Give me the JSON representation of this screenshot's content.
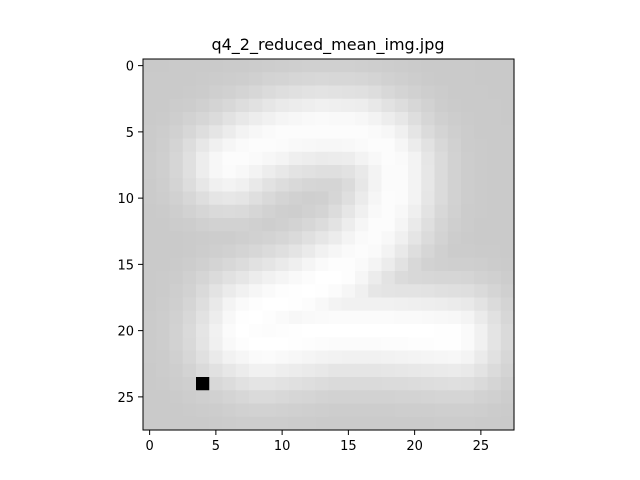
{
  "chart_data": {
    "type": "heatmap",
    "title": "q4_2_reduced_mean_img.jpg",
    "xlabel": "",
    "ylabel": "",
    "colormap": "gray",
    "grid": false,
    "xlim": [
      -0.5,
      27.5
    ],
    "ylim": [
      27.5,
      -0.5
    ],
    "xticks": [
      0,
      5,
      10,
      15,
      20,
      25
    ],
    "yticks": [
      0,
      5,
      10,
      15,
      20,
      25
    ],
    "image_size": [
      28,
      28
    ],
    "background_value": 0.79,
    "marked_pixel": {
      "x": 4,
      "y": 24,
      "value": 0.0
    },
    "strokes": [
      {
        "part": "top-arc",
        "points": [
          [
            6,
            7.5
          ],
          [
            8,
            6.2
          ],
          [
            10.5,
            5.2
          ],
          [
            13,
            4.8
          ],
          [
            15.5,
            5.0
          ],
          [
            17.5,
            6.0
          ],
          [
            18.5,
            7.5
          ],
          [
            18.5,
            9.5
          ],
          [
            17.8,
            11.5
          ],
          [
            16.5,
            13.5
          ],
          [
            14.5,
            15.5
          ]
        ],
        "width": 2.4,
        "peak": 0.99
      },
      {
        "part": "base-loop",
        "points": [
          [
            14.5,
            15.5
          ],
          [
            12,
            17.0
          ],
          [
            9.5,
            18.0
          ],
          [
            7.5,
            19.0
          ],
          [
            7.0,
            20.3
          ],
          [
            8.5,
            21.0
          ],
          [
            11,
            20.5
          ],
          [
            14,
            20.0
          ],
          [
            17,
            20.0
          ],
          [
            20,
            20.2
          ],
          [
            23,
            20.5
          ]
        ],
        "width": 2.6,
        "peak": 1.0
      }
    ]
  }
}
